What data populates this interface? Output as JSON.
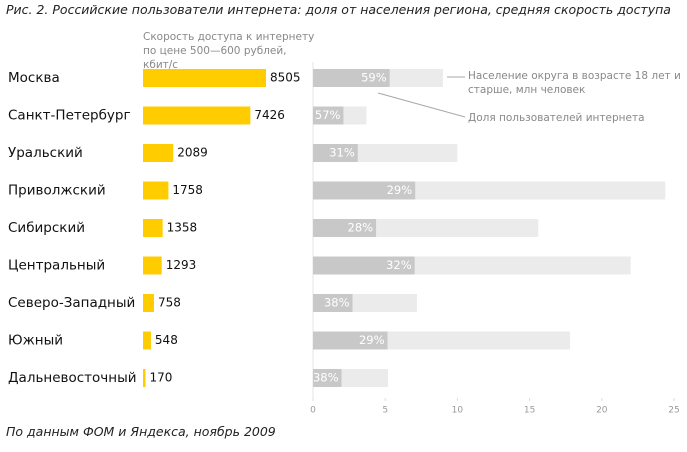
{
  "title": "Рис. 2. Российские пользователи интернета: доля от населения региона, средняя скорость доступа",
  "note": "По данным ФОМ и Яндекса, ноябрь 2009",
  "chart_data": [
    {
      "type": "bar",
      "orientation": "horizontal",
      "subtitle": "Скорость доступа к интернету по цене 500—600 рублей, кбит/с",
      "categories": [
        "Москва",
        "Санкт-Петербург",
        "Уральский",
        "Приволжский",
        "Сибирский",
        "Центральный",
        "Северо-Западный",
        "Южный",
        "Дальневосточный"
      ],
      "values": [
        8505,
        7426,
        2089,
        1758,
        1358,
        1293,
        758,
        548,
        170
      ],
      "color": "#ffcc00"
    },
    {
      "type": "share-bar",
      "orientation": "horizontal",
      "series": [
        {
          "name": "Население округа в возрасте 18 лет и старше, млн человек",
          "color": "#ebebeb",
          "values": [
            9.0,
            3.7,
            10.0,
            24.4,
            15.6,
            22.0,
            7.2,
            17.8,
            5.2
          ]
        },
        {
          "name": "Доля пользователей интернета",
          "color": "#c8c8c8",
          "values": [
            59,
            57,
            31,
            29,
            28,
            32,
            38,
            29,
            38
          ],
          "value_labels": [
            "59%",
            "57%",
            "31%",
            "29%",
            "28%",
            "32%",
            "38%",
            "29%",
            "38%"
          ]
        }
      ],
      "xlim": [
        0,
        25
      ],
      "xticks": [
        0,
        5,
        10,
        15,
        20,
        25
      ]
    }
  ]
}
